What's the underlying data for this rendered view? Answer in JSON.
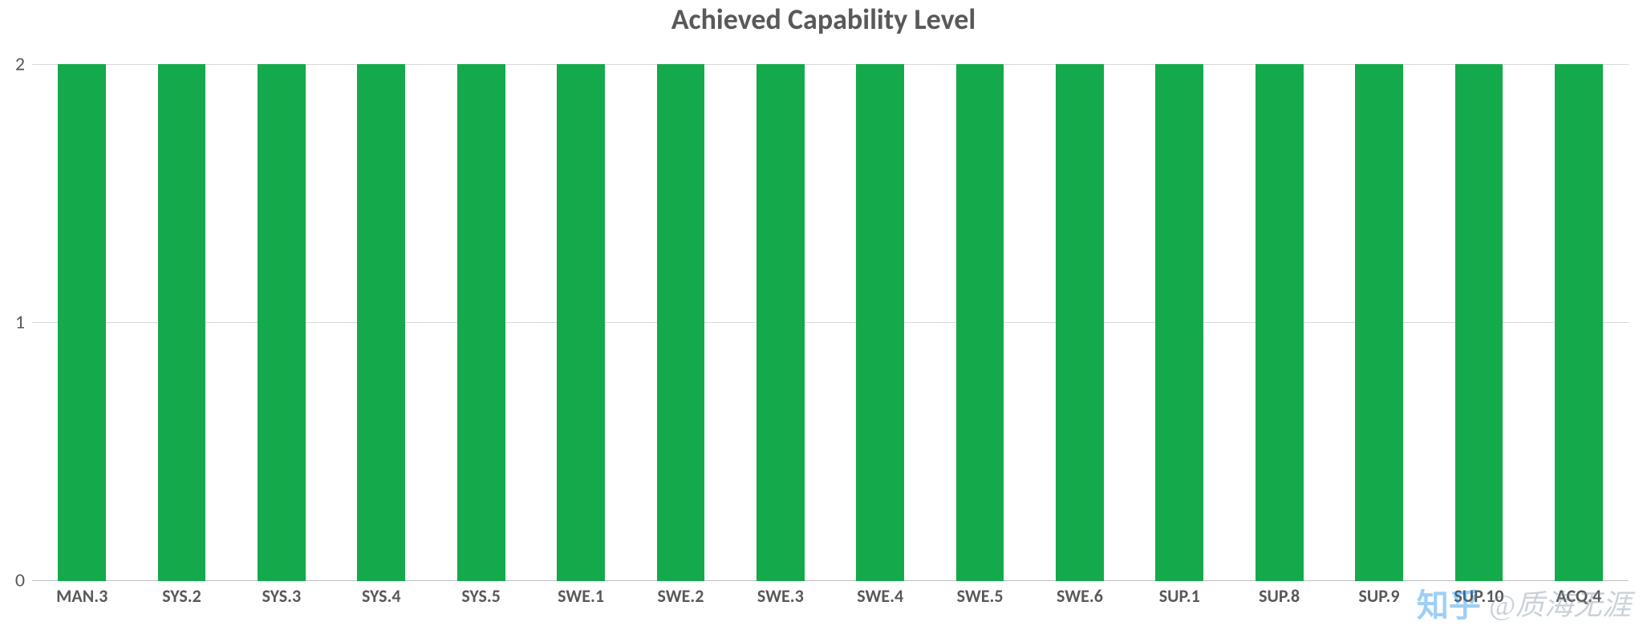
{
  "chart": {
    "type": "bar",
    "title": "Achieved Capability Level",
    "title_fontsize": 36,
    "title_color": "#595959",
    "title_weight": "bold",
    "categories": [
      "MAN.3",
      "SYS.2",
      "SYS.3",
      "SYS.4",
      "SYS.5",
      "SWE.1",
      "SWE.2",
      "SWE.3",
      "SWE.4",
      "SWE.5",
      "SWE.6",
      "SUP.1",
      "SUP.8",
      "SUP.9",
      "SUP.10",
      "ACQ.4"
    ],
    "values": [
      2,
      2,
      2,
      2,
      2,
      2,
      2,
      2,
      2,
      2,
      2,
      2,
      2,
      2,
      2,
      2
    ],
    "bar_colors": [
      "#14a94b",
      "#14a94b",
      "#14a94b",
      "#14a94b",
      "#14a94b",
      "#14a94b",
      "#14a94b",
      "#14a94b",
      "#14a94b",
      "#14a94b",
      "#14a94b",
      "#14a94b",
      "#14a94b",
      "#14a94b",
      "#14a94b",
      "#14a94b"
    ],
    "ylim": [
      0,
      2
    ],
    "yticks": [
      0,
      1,
      2
    ],
    "ytick_step": 1,
    "y_label_fontsize": 24,
    "y_label_color": "#595959",
    "x_label_fontsize": 22,
    "x_label_color": "#595959",
    "x_label_weight": "bold",
    "bar_width_ratio": 0.48,
    "background_color": "#ffffff",
    "grid_color": "#d9d9d9",
    "axis_line_color": "#bfbfbf"
  },
  "watermark": {
    "platform": "知乎",
    "platform_color": "#0f88eb",
    "prefix": "@",
    "author": "质海无涯",
    "text_color": "#7f8fa4",
    "fontsize": 36
  }
}
